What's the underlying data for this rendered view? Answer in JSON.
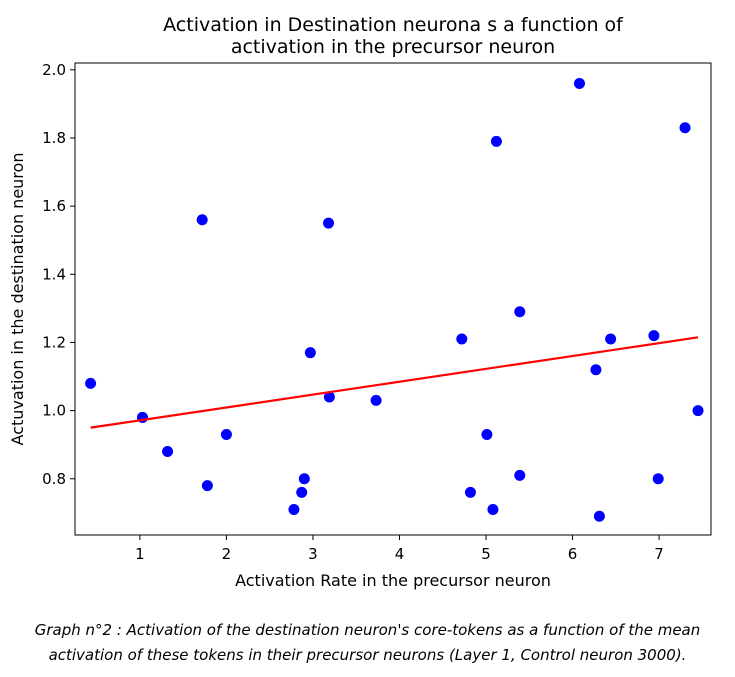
{
  "chart_data": {
    "type": "scatter",
    "title_lines": [
      "Activation in Destination neurona s a function of",
      "activation in the precursor neuron"
    ],
    "xlabel": "Activation Rate in the precursor neuron",
    "ylabel": "Actuvation in the destination neuron",
    "xlim": [
      0.25,
      7.6
    ],
    "ylim": [
      0.635,
      2.02
    ],
    "xticks": [
      1,
      2,
      3,
      4,
      5,
      6,
      7
    ],
    "xtick_labels": [
      "1",
      "2",
      "3",
      "4",
      "5",
      "6",
      "7"
    ],
    "yticks": [
      0.8,
      1.0,
      1.2,
      1.4,
      1.6,
      1.8,
      2.0
    ],
    "ytick_labels": [
      "0.8",
      "1.0",
      "1.2",
      "1.4",
      "1.6",
      "1.8",
      "2.0"
    ],
    "grid": false,
    "colors": {
      "points": "#0000ff",
      "trend": "#ff0000",
      "axes": "#000000"
    },
    "points": {
      "x": [
        0.43,
        1.03,
        1.32,
        1.72,
        1.78,
        2.0,
        2.78,
        2.87,
        2.9,
        2.97,
        3.18,
        3.19,
        3.73,
        4.72,
        4.82,
        5.01,
        5.08,
        5.12,
        5.39,
        5.39,
        6.08,
        6.27,
        6.31,
        6.44,
        6.94,
        6.99,
        7.3,
        7.45
      ],
      "y": [
        1.08,
        0.98,
        0.88,
        1.56,
        0.78,
        0.93,
        0.71,
        0.76,
        0.8,
        1.17,
        1.55,
        1.04,
        1.03,
        1.21,
        0.76,
        0.93,
        0.71,
        1.79,
        1.29,
        0.81,
        1.96,
        1.12,
        0.69,
        1.21,
        1.22,
        0.8,
        1.83,
        1.0
      ]
    },
    "trendline": {
      "x": [
        0.43,
        7.45
      ],
      "y": [
        0.95,
        1.215
      ]
    }
  },
  "caption": {
    "line1": "Graph n°2 : Activation of the destination neuron's core-tokens as a function of the mean",
    "line2": "activation of these tokens in their precursor neurons (Layer 1, Control neuron 3000)."
  }
}
